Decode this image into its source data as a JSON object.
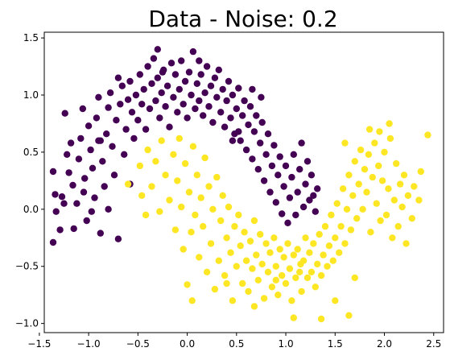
{
  "chart_data": {
    "type": "scatter",
    "title": "Data - Noise: 0.2",
    "xlabel": "",
    "ylabel": "",
    "xlim": [
      -1.45,
      2.6
    ],
    "ylim": [
      -1.08,
      1.55
    ],
    "xticks": [
      -1.5,
      -1.0,
      -0.5,
      0.0,
      0.5,
      1.0,
      1.5,
      2.0,
      2.5
    ],
    "xtick_labels": [
      "−1.5",
      "−1.0",
      "−0.5",
      "0.0",
      "0.5",
      "1.0",
      "1.5",
      "2.0",
      "2.5"
    ],
    "yticks": [
      -1.0,
      -0.5,
      0.0,
      0.5,
      1.0,
      1.5
    ],
    "ytick_labels": [
      "−1.0",
      "−0.5",
      "0.0",
      "0.5",
      "1.0",
      "1.5"
    ],
    "grid": false,
    "series": [
      {
        "color": "#440154",
        "points": [
          [
            -1.36,
            0.33
          ],
          [
            -1.34,
            0.13
          ],
          [
            -1.33,
            -0.02
          ],
          [
            -1.36,
            -0.29
          ],
          [
            -1.29,
            -0.18
          ],
          [
            -1.27,
            0.11
          ],
          [
            -1.24,
            0.84
          ],
          [
            -1.22,
            0.48
          ],
          [
            -1.2,
            0.32
          ],
          [
            -1.18,
            0.58
          ],
          [
            -1.16,
            0.21
          ],
          [
            -1.12,
            0.05
          ],
          [
            -1.1,
            0.44
          ],
          [
            -1.08,
            0.62
          ],
          [
            -1.06,
            0.88
          ],
          [
            -1.04,
            0.27
          ],
          [
            -1.02,
            -0.1
          ],
          [
            -1.0,
            0.73
          ],
          [
            -0.98,
            0.52
          ],
          [
            -0.96,
            0.36
          ],
          [
            -0.94,
            0.1
          ],
          [
            -0.92,
            0.8
          ],
          [
            -0.9,
            0.98
          ],
          [
            -0.88,
            0.6
          ],
          [
            -0.86,
            0.42
          ],
          [
            -0.84,
            0.2
          ],
          [
            -0.82,
            0.66
          ],
          [
            -0.8,
            0.89
          ],
          [
            -0.78,
            1.02
          ],
          [
            -0.76,
            0.55
          ],
          [
            -0.74,
            0.3
          ],
          [
            -0.72,
            0.78
          ],
          [
            -0.7,
            -0.26
          ],
          [
            -0.68,
            0.92
          ],
          [
            -0.66,
            1.08
          ],
          [
            -0.64,
            0.48
          ],
          [
            -0.62,
            0.7
          ],
          [
            -0.6,
            0.96
          ],
          [
            -0.58,
            1.12
          ],
          [
            -0.56,
            0.85
          ],
          [
            -0.54,
            0.62
          ],
          [
            -0.52,
            1.0
          ],
          [
            -0.5,
            0.78
          ],
          [
            -0.48,
            1.18
          ],
          [
            -0.46,
            0.92
          ],
          [
            -0.44,
            1.05
          ],
          [
            -0.42,
            0.7
          ],
          [
            -0.4,
            1.25
          ],
          [
            -0.38,
            0.88
          ],
          [
            -0.36,
            1.1
          ],
          [
            -0.34,
            1.32
          ],
          [
            -0.32,
            0.95
          ],
          [
            -0.3,
            1.15
          ],
          [
            -0.28,
            0.8
          ],
          [
            -0.26,
            1.02
          ],
          [
            -0.24,
            1.22
          ],
          [
            -0.22,
            0.9
          ],
          [
            -0.2,
            1.08
          ],
          [
            -0.18,
            0.72
          ],
          [
            -0.16,
            1.28
          ],
          [
            -0.14,
            0.98
          ],
          [
            -0.12,
            1.18
          ],
          [
            -0.1,
            0.85
          ],
          [
            -0.08,
            1.05
          ],
          [
            -0.06,
            1.3
          ],
          [
            -0.04,
            0.92
          ],
          [
            -0.02,
            1.12
          ],
          [
            0.0,
            0.8
          ],
          [
            0.02,
            1.2
          ],
          [
            0.04,
            1.0
          ],
          [
            0.06,
            1.38
          ],
          [
            0.08,
            0.88
          ],
          [
            0.1,
            1.1
          ],
          [
            0.12,
            0.95
          ],
          [
            0.14,
            1.18
          ],
          [
            0.16,
            0.82
          ],
          [
            0.18,
            1.02
          ],
          [
            0.2,
            1.25
          ],
          [
            0.22,
            0.9
          ],
          [
            0.24,
            1.08
          ],
          [
            0.26,
            0.76
          ],
          [
            0.28,
            1.15
          ],
          [
            0.3,
            0.98
          ],
          [
            0.32,
            1.22
          ],
          [
            0.34,
            0.85
          ],
          [
            0.36,
            1.05
          ],
          [
            0.38,
            0.72
          ],
          [
            0.4,
            0.95
          ],
          [
            0.42,
            1.12
          ],
          [
            0.44,
            0.8
          ],
          [
            0.46,
            1.0
          ],
          [
            0.48,
            0.66
          ],
          [
            0.5,
            0.88
          ],
          [
            0.52,
            1.06
          ],
          [
            0.54,
            0.6
          ],
          [
            0.56,
            0.82
          ],
          [
            0.58,
            0.95
          ],
          [
            0.6,
            0.52
          ],
          [
            0.62,
            0.74
          ],
          [
            0.64,
            0.9
          ],
          [
            0.66,
            0.44
          ],
          [
            0.68,
            0.68
          ],
          [
            0.7,
            0.82
          ],
          [
            0.72,
            0.35
          ],
          [
            0.74,
            0.58
          ],
          [
            0.76,
            0.76
          ],
          [
            0.78,
            0.25
          ],
          [
            0.8,
            0.48
          ],
          [
            0.82,
            0.66
          ],
          [
            0.84,
            0.15
          ],
          [
            0.86,
            0.38
          ],
          [
            0.88,
            0.56
          ],
          [
            0.9,
            0.06
          ],
          [
            0.92,
            0.3
          ],
          [
            0.94,
            0.46
          ],
          [
            0.96,
            -0.04
          ],
          [
            0.98,
            0.2
          ],
          [
            1.0,
            0.38
          ],
          [
            1.02,
            -0.12
          ],
          [
            1.04,
            0.1
          ],
          [
            1.06,
            0.28
          ],
          [
            1.08,
            0.48
          ],
          [
            1.1,
            -0.05
          ],
          [
            1.12,
            0.15
          ],
          [
            1.14,
            0.35
          ],
          [
            1.16,
            0.58
          ],
          [
            1.18,
            0.02
          ],
          [
            1.2,
            0.22
          ],
          [
            1.22,
            0.42
          ],
          [
            1.24,
            0.08
          ],
          [
            1.26,
            0.3
          ],
          [
            1.28,
            0.12
          ],
          [
            1.3,
            -0.02
          ],
          [
            1.32,
            0.18
          ],
          [
            -1.15,
            -0.17
          ],
          [
            -0.88,
            -0.21
          ],
          [
            -1.25,
            0.05
          ],
          [
            -0.97,
            -0.02
          ],
          [
            -0.58,
            0.22
          ],
          [
            0.52,
            0.68
          ],
          [
            0.75,
            0.98
          ],
          [
            0.66,
            1.05
          ],
          [
            0.46,
            0.6
          ],
          [
            -0.3,
            1.4
          ],
          [
            -0.25,
            1.2
          ],
          [
            0.12,
            1.3
          ],
          [
            -0.7,
            1.15
          ],
          [
            -0.9,
            0.6
          ],
          [
            -1.05,
            0.15
          ],
          [
            -0.8,
            0.0
          ]
        ]
      },
      {
        "color": "#fde725",
        "points": [
          [
            -0.6,
            0.22
          ],
          [
            -0.48,
            0.38
          ],
          [
            -0.46,
            0.12
          ],
          [
            -0.42,
            -0.05
          ],
          [
            -0.4,
            0.52
          ],
          [
            -0.36,
            0.2
          ],
          [
            -0.32,
            0.42
          ],
          [
            -0.28,
            -0.02
          ],
          [
            -0.26,
            0.6
          ],
          [
            -0.22,
            0.3
          ],
          [
            -0.18,
            0.08
          ],
          [
            -0.14,
            0.48
          ],
          [
            -0.12,
            -0.18
          ],
          [
            -0.1,
            0.25
          ],
          [
            -0.08,
            0.62
          ],
          [
            -0.06,
            0.02
          ],
          [
            -0.04,
            -0.35
          ],
          [
            -0.02,
            0.4
          ],
          [
            0.0,
            -0.66
          ],
          [
            0.02,
            0.15
          ],
          [
            0.04,
            -0.2
          ],
          [
            0.06,
            0.55
          ],
          [
            0.08,
            -0.05
          ],
          [
            0.1,
            0.3
          ],
          [
            0.12,
            -0.42
          ],
          [
            0.14,
            0.1
          ],
          [
            0.16,
            -0.15
          ],
          [
            0.18,
            0.45
          ],
          [
            0.2,
            -0.55
          ],
          [
            0.22,
            0.2
          ],
          [
            0.24,
            -0.3
          ],
          [
            0.26,
            0.0
          ],
          [
            0.28,
            -0.7
          ],
          [
            0.3,
            0.28
          ],
          [
            0.32,
            -0.45
          ],
          [
            0.34,
            -0.1
          ],
          [
            0.36,
            0.12
          ],
          [
            0.38,
            -0.58
          ],
          [
            0.4,
            -0.25
          ],
          [
            0.42,
            0.02
          ],
          [
            0.44,
            -0.38
          ],
          [
            0.46,
            -0.8
          ],
          [
            0.48,
            -0.15
          ],
          [
            0.5,
            -0.5
          ],
          [
            0.52,
            -0.05
          ],
          [
            0.54,
            -0.32
          ],
          [
            0.56,
            -0.65
          ],
          [
            0.58,
            -0.2
          ],
          [
            0.6,
            -0.45
          ],
          [
            0.62,
            -0.72
          ],
          [
            0.64,
            -0.28
          ],
          [
            0.66,
            -0.52
          ],
          [
            0.68,
            -0.1
          ],
          [
            0.7,
            -0.4
          ],
          [
            0.72,
            -0.62
          ],
          [
            0.74,
            -0.22
          ],
          [
            0.76,
            -0.48
          ],
          [
            0.78,
            -0.78
          ],
          [
            0.8,
            -0.3
          ],
          [
            0.82,
            -0.55
          ],
          [
            0.84,
            -0.38
          ],
          [
            0.86,
            -0.68
          ],
          [
            0.88,
            -0.25
          ],
          [
            0.9,
            -0.5
          ],
          [
            0.92,
            -0.75
          ],
          [
            0.94,
            -0.35
          ],
          [
            0.96,
            -0.58
          ],
          [
            0.98,
            -0.42
          ],
          [
            1.0,
            -0.65
          ],
          [
            1.02,
            -0.3
          ],
          [
            1.04,
            -0.52
          ],
          [
            1.06,
            -0.8
          ],
          [
            1.08,
            -0.4
          ],
          [
            1.1,
            -0.6
          ],
          [
            1.12,
            -0.35
          ],
          [
            1.14,
            -0.55
          ],
          [
            1.16,
            -0.72
          ],
          [
            1.18,
            -0.45
          ],
          [
            1.2,
            -0.25
          ],
          [
            1.22,
            -0.6
          ],
          [
            1.24,
            -0.38
          ],
          [
            1.26,
            -0.55
          ],
          [
            1.28,
            -0.3
          ],
          [
            1.3,
            -0.68
          ],
          [
            1.32,
            -0.48
          ],
          [
            1.34,
            -0.22
          ],
          [
            1.36,
            -0.58
          ],
          [
            1.38,
            -0.4
          ],
          [
            1.4,
            -0.15
          ],
          [
            1.42,
            -0.5
          ],
          [
            1.44,
            -0.32
          ],
          [
            1.46,
            -0.05
          ],
          [
            1.48,
            -0.45
          ],
          [
            1.5,
            -0.25
          ],
          [
            1.52,
            0.05
          ],
          [
            1.54,
            -0.38
          ],
          [
            1.56,
            -0.15
          ],
          [
            1.58,
            0.18
          ],
          [
            1.6,
            -0.3
          ],
          [
            1.62,
            0.0
          ],
          [
            1.64,
            0.3
          ],
          [
            1.66,
            -0.18
          ],
          [
            1.68,
            0.12
          ],
          [
            1.7,
            0.42
          ],
          [
            1.72,
            -0.08
          ],
          [
            1.74,
            0.22
          ],
          [
            1.76,
            0.52
          ],
          [
            1.78,
            0.0
          ],
          [
            1.8,
            0.35
          ],
          [
            1.82,
            0.15
          ],
          [
            1.84,
            0.48
          ],
          [
            1.86,
            -0.2
          ],
          [
            1.88,
            0.28
          ],
          [
            1.9,
            0.58
          ],
          [
            1.92,
            0.05
          ],
          [
            1.94,
            0.38
          ],
          [
            1.96,
            -0.1
          ],
          [
            1.98,
            0.25
          ],
          [
            2.0,
            0.5
          ],
          [
            2.02,
            -0.05
          ],
          [
            2.04,
            0.18
          ],
          [
            2.06,
            0.62
          ],
          [
            2.08,
            -0.25
          ],
          [
            2.1,
            0.08
          ],
          [
            2.12,
            0.4
          ],
          [
            2.14,
            -0.15
          ],
          [
            2.16,
            0.22
          ],
          [
            2.18,
            0.02
          ],
          [
            2.2,
            0.3
          ],
          [
            2.22,
            -0.3
          ],
          [
            2.24,
            0.12
          ],
          [
            2.28,
            -0.08
          ],
          [
            2.3,
            0.2
          ],
          [
            2.35,
            0.08
          ],
          [
            2.44,
            0.65
          ],
          [
            2.37,
            0.33
          ],
          [
            1.08,
            -0.95
          ],
          [
            1.36,
            -0.96
          ],
          [
            1.64,
            -0.93
          ],
          [
            0.05,
            -0.8
          ],
          [
            0.4,
            -0.65
          ],
          [
            0.68,
            -0.85
          ],
          [
            0.9,
            -0.62
          ],
          [
            1.15,
            -0.48
          ],
          [
            1.5,
            -0.8
          ],
          [
            1.7,
            -0.6
          ],
          [
            2.05,
            0.75
          ],
          [
            1.95,
            0.68
          ],
          [
            1.85,
            0.7
          ],
          [
            1.6,
            0.58
          ]
        ]
      }
    ]
  }
}
